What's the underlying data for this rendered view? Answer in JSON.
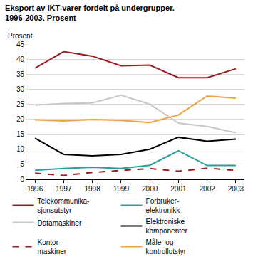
{
  "chart_data": {
    "type": "line",
    "title": "Eksport av IKT-varer fordelt på undergrupper.\n1996-2003. Prosent",
    "y_label": "Prosent",
    "x": [
      1996,
      1997,
      1998,
      1999,
      2000,
      2001,
      2002,
      2003
    ],
    "xlim": [
      1995.7,
      2003.3
    ],
    "xticks": [
      1996,
      1997,
      1998,
      1999,
      2000,
      2001,
      2002,
      2003
    ],
    "ylim": [
      0,
      45
    ],
    "yticks": [
      0,
      5,
      10,
      15,
      20,
      25,
      30,
      35,
      40,
      45
    ],
    "grid": true,
    "legend": "bottom",
    "series": [
      {
        "name": "Telekommunika-\nsjonsutstyr",
        "color": "#9b1b20",
        "line_style": "solid",
        "values": [
          37,
          42.5,
          41,
          37.8,
          38,
          33.8,
          33.8,
          36.8
        ]
      },
      {
        "name": "Forbruker-\nelektronikk",
        "color": "#2a9d9a",
        "line_style": "solid",
        "values": [
          3,
          3.6,
          4,
          3.6,
          4.7,
          9.5,
          4.6,
          4.6
        ]
      },
      {
        "name": "Datamaskiner",
        "color": "#c8c8c8",
        "line_style": "solid",
        "values": [
          24.7,
          25.2,
          25.4,
          28,
          25,
          18.7,
          17.6,
          15.5
        ]
      },
      {
        "name": "Elektroniske\nkomponenter",
        "color": "#000000",
        "line_style": "solid",
        "values": [
          13.7,
          8.3,
          7.8,
          8.3,
          10,
          14,
          12.7,
          13.4
        ]
      },
      {
        "name": "Kontor-\nmaskiner",
        "color": "#9b1b20",
        "line_style": "dash",
        "values": [
          2.1,
          1.3,
          2.3,
          2.9,
          3.6,
          2.7,
          3.7,
          3
        ]
      },
      {
        "name": "Måle- og\nkontrollutstyr",
        "color": "#f5a040",
        "line_style": "solid",
        "values": [
          19.8,
          19.4,
          19.9,
          19.6,
          18.9,
          21.4,
          27.7,
          27
        ]
      }
    ]
  }
}
